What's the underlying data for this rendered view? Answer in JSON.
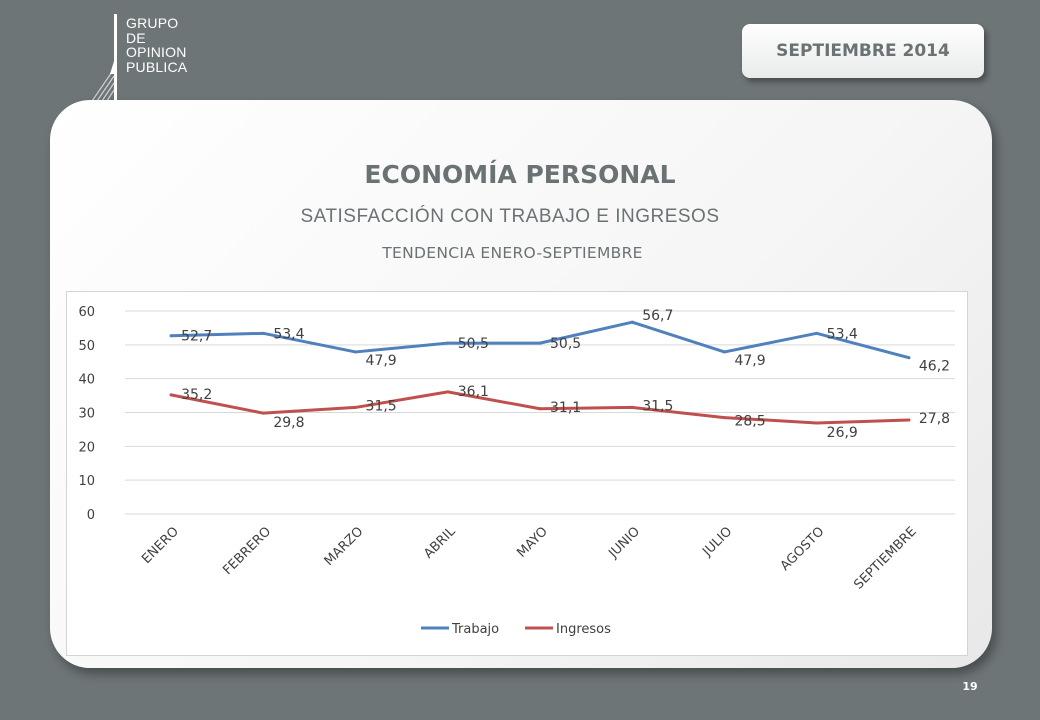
{
  "logo": {
    "lines": [
      "GRUPO",
      "DE",
      "OPINION",
      "PUBLICA"
    ]
  },
  "header": {
    "date_label": "SEPTIEMBRE  2014"
  },
  "slide": {
    "title": "ECONOMÍA PERSONAL",
    "subtitle": "SATISFACCIÓN CON TRABAJO E INGRESOS",
    "subtitle2": "TENDENCIA ENERO-SEPTIEMBRE",
    "page_number": "19"
  },
  "chart_data": {
    "type": "line",
    "categories": [
      "ENERO",
      "FEBRERO",
      "MARZO",
      "ABRIL",
      "MAYO",
      "JUNIO",
      "JULIO",
      "AGOSTO",
      "SEPTIEMBRE"
    ],
    "series": [
      {
        "name": "Trabajo",
        "color": "#4f81bd",
        "values": [
          52.7,
          53.4,
          47.9,
          50.5,
          50.5,
          56.7,
          47.9,
          53.4,
          46.2
        ],
        "labels": [
          "52,7",
          "53,4",
          "47,9",
          "50,5",
          "50,5",
          "56,7",
          "47,9",
          "53,4",
          "46,2"
        ]
      },
      {
        "name": "Ingresos",
        "color": "#c0504d",
        "values": [
          35.2,
          29.8,
          31.5,
          36.1,
          31.1,
          31.5,
          28.5,
          26.9,
          27.8
        ],
        "labels": [
          "35,2",
          "29,8",
          "31,5",
          "36,1",
          "31,1",
          "31,5",
          "28,5",
          "26,9",
          "27,8"
        ]
      }
    ],
    "yticks": [
      "0",
      "10",
      "20",
      "30",
      "40",
      "50",
      "60"
    ],
    "ylim": [
      0,
      60
    ],
    "grid": true,
    "legend": "bottom",
    "xlabel": "",
    "ylabel": ""
  }
}
